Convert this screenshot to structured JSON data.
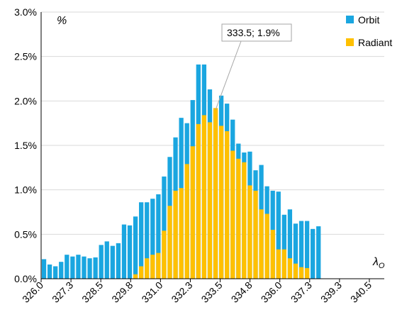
{
  "chart_data": {
    "type": "bar",
    "stacked_overlay": true,
    "y_unit_label": "%",
    "x_axis_label": "λ",
    "x_axis_label_sub": "O",
    "ylim": [
      0,
      3.0
    ],
    "yticks": [
      "0.0%",
      "0.5%",
      "1.0%",
      "1.5%",
      "2.0%",
      "2.5%",
      "3.0%"
    ],
    "xlim": [
      326.0,
      341.0
    ],
    "xticks": [
      "326.0",
      "327.3",
      "328.5",
      "329.8",
      "331.0",
      "332.3",
      "333.5",
      "334.8",
      "336.0",
      "337.3",
      "339.3",
      "340.5"
    ],
    "bin_width": 0.25,
    "grid": "horizontal",
    "legend": "top-right",
    "colors": {
      "orbit": "#1aa6e0",
      "radiant": "#ffc000"
    },
    "annotation": {
      "text": "333.5; 1.9%",
      "x": 333.5,
      "y": 1.9
    },
    "series": [
      {
        "name": "Orbit",
        "x": [
          326.0,
          326.25,
          326.5,
          326.75,
          327.0,
          327.25,
          327.5,
          327.75,
          328.0,
          328.25,
          328.5,
          328.75,
          329.0,
          329.25,
          329.5,
          329.75,
          330.0,
          330.25,
          330.5,
          330.75,
          331.0,
          331.25,
          331.5,
          331.75,
          332.0,
          332.25,
          332.5,
          332.75,
          333.0,
          333.25,
          333.5,
          333.75,
          334.0,
          334.25,
          334.5,
          334.75,
          335.0,
          335.25,
          335.5,
          335.75,
          336.0,
          336.25,
          336.5,
          336.75,
          337.0,
          337.25,
          337.5,
          337.75,
          338.0,
          338.25,
          338.5,
          338.75
        ],
        "values": [
          0.22,
          0.16,
          0.14,
          0.19,
          0.27,
          0.25,
          0.27,
          0.25,
          0.23,
          0.24,
          0.38,
          0.42,
          0.37,
          0.4,
          0.61,
          0.6,
          0.7,
          0.86,
          0.86,
          0.9,
          0.95,
          1.15,
          1.37,
          1.59,
          1.81,
          1.75,
          2.01,
          2.41,
          2.41,
          2.13,
          1.9,
          2.06,
          1.97,
          1.79,
          1.52,
          1.42,
          1.43,
          1.22,
          1.28,
          1.04,
          0.99,
          0.98,
          0.72,
          0.78,
          0.62,
          0.65,
          0.65,
          0.56,
          0.59,
          0,
          0,
          0
        ]
      },
      {
        "name": "Radiant",
        "x": [
          326.0,
          326.25,
          326.5,
          326.75,
          327.0,
          327.25,
          327.5,
          327.75,
          328.0,
          328.25,
          328.5,
          328.75,
          329.0,
          329.25,
          329.5,
          329.75,
          330.0,
          330.25,
          330.5,
          330.75,
          331.0,
          331.25,
          331.5,
          331.75,
          332.0,
          332.25,
          332.5,
          332.75,
          333.0,
          333.25,
          333.5,
          333.75,
          334.0,
          334.25,
          334.5,
          334.75,
          335.0,
          335.25,
          335.5,
          335.75,
          336.0,
          336.25,
          336.5,
          336.75,
          337.0,
          337.25,
          337.5,
          337.75,
          338.0,
          338.25,
          338.5,
          338.75
        ],
        "values": [
          0,
          0,
          0,
          0,
          0,
          0,
          0,
          0,
          0,
          0,
          0,
          0,
          0,
          0,
          0,
          0,
          0.05,
          0.14,
          0.23,
          0.27,
          0.29,
          0.54,
          0.82,
          0.99,
          1.02,
          1.29,
          1.49,
          1.74,
          1.84,
          1.76,
          1.92,
          1.72,
          1.66,
          1.44,
          1.35,
          1.31,
          1.05,
          0.99,
          0.78,
          0.73,
          0.55,
          0.33,
          0.33,
          0.23,
          0.17,
          0.13,
          0.12,
          0,
          0,
          0,
          0,
          0
        ]
      }
    ]
  }
}
